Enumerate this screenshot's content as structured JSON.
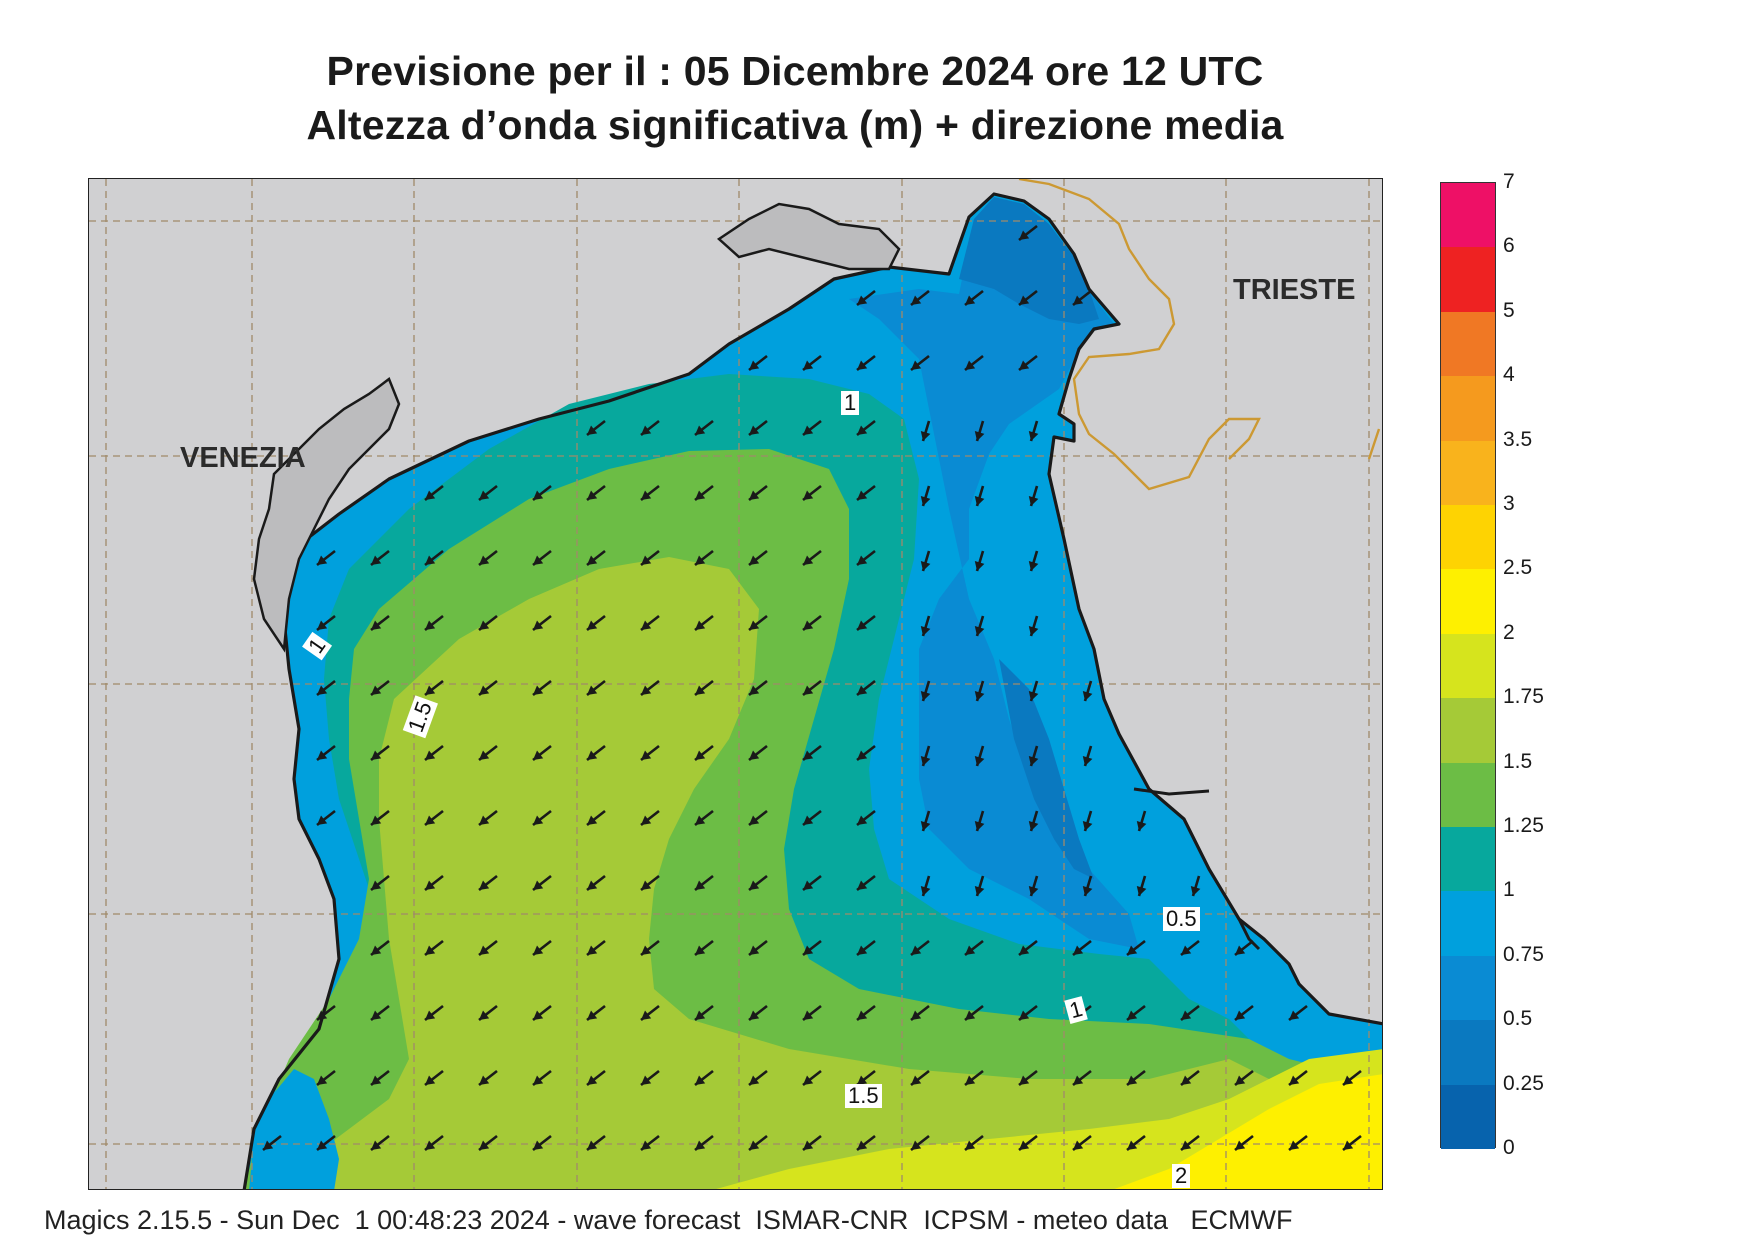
{
  "title": {
    "line1": "Previsione per il  :  05 Dicembre  2024   ore 12 UTC",
    "line2": "Altezza d’onda significativa (m) + direzione media"
  },
  "cities": {
    "venezia": "VENEZIA",
    "trieste": "TRIESTE"
  },
  "contour_labels": [
    "1",
    "1",
    "1.5",
    "0.5",
    "1",
    "1.5",
    "2"
  ],
  "legend": {
    "unit": "m",
    "levels": [
      "7",
      "6",
      "5",
      "4",
      "3.5",
      "3",
      "2.5",
      "2",
      "1.75",
      "1.5",
      "1.25",
      "1",
      "0.75",
      "0.5",
      "0.25",
      "0"
    ],
    "colors": [
      "#ee1066",
      "#ee2222",
      "#f07824",
      "#f59a1e",
      "#f9b31c",
      "#fed302",
      "#fef000",
      "#d6e41d",
      "#a5ca37",
      "#6cbd45",
      "#07a89d",
      "#00a0dd",
      "#0a8bd3",
      "#0a79c0",
      "#0763ad"
    ]
  },
  "colors": {
    "land": "#d0d0d2",
    "coast": "#1a1a1a",
    "border": "#cc9933",
    "grid": "#a08a6a",
    "arrow": "#1a1a1a"
  },
  "wave_direction": "toward south-west",
  "footer": "Magics 2.15.5 - Sun Dec  1 00:48:23 2024 - wave forecast  ISMAR-CNR  ICPSM - meteo data   ECMWF"
}
